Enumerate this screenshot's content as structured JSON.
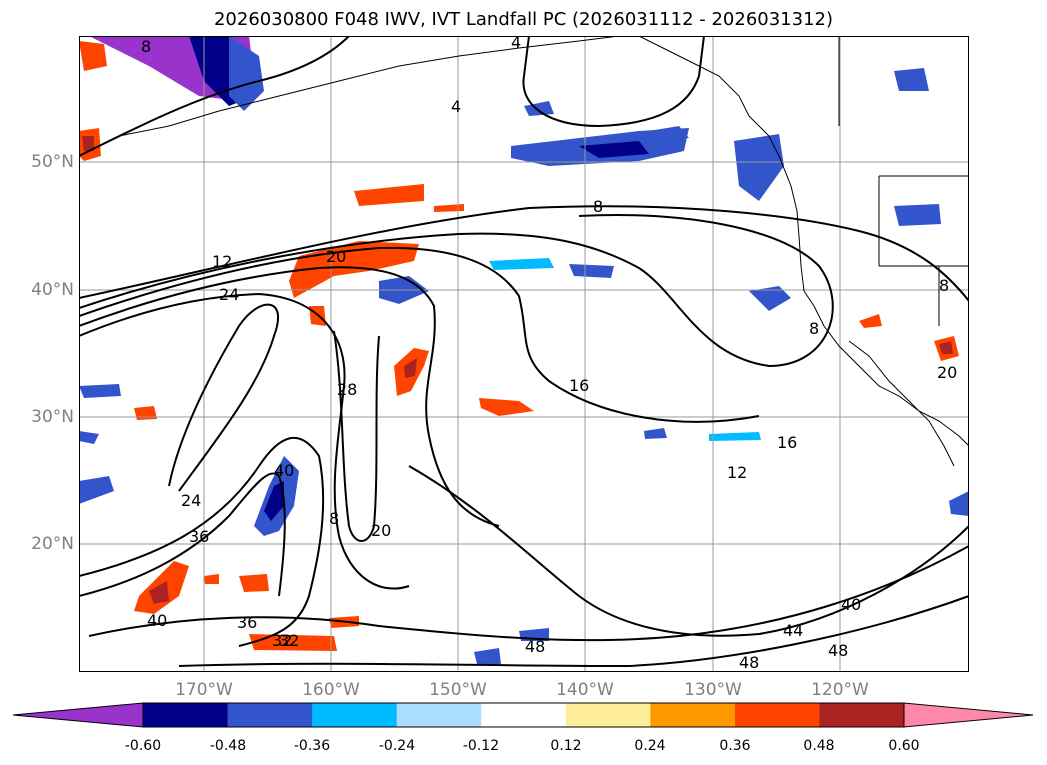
{
  "title": "2026030800 F048 IWV, IVT Landfall PC (2026031112 - 2026031312)",
  "lat_labels": [
    "50°N",
    "40°N",
    "30°N",
    "20°N"
  ],
  "lon_labels": [
    "170°W",
    "160°W",
    "150°W",
    "140°W",
    "130°W",
    "120°W"
  ],
  "contour_labels": [
    "8",
    "4",
    "4",
    "8",
    "12",
    "24",
    "20",
    "28",
    "8",
    "16",
    "16",
    "12",
    "24",
    "36",
    "40",
    "32",
    "40",
    "36",
    "32",
    "40",
    "44",
    "48",
    "48",
    "48",
    "8",
    "8",
    "20",
    "20"
  ],
  "colorbar": {
    "ticks": [
      "-0.60",
      "-0.48",
      "-0.36",
      "-0.24",
      "-0.12",
      "0.12",
      "0.24",
      "0.36",
      "0.48",
      "0.60"
    ],
    "colors": [
      "#9933cc",
      "#000088",
      "#3355cc",
      "#00bbff",
      "#aaddff",
      "#ffffff",
      "#ffee99",
      "#ff9900",
      "#ff4400",
      "#aa2222",
      "#ff88aa"
    ]
  },
  "colors": {
    "contour": "#000000",
    "grid": "#999999",
    "axis_label": "#808080"
  }
}
